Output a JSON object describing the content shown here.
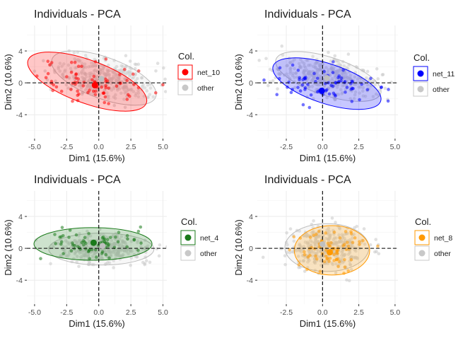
{
  "chart_data": [
    {
      "type": "scatter",
      "title": "Individuals - PCA",
      "xlabel": "Dim1 (15.6%)",
      "ylabel": "Dim2 (10.6%)",
      "xlim": [
        -5.6,
        5.3
      ],
      "ylim": [
        -7.0,
        7.2
      ],
      "xticks": [
        -5.0,
        -2.5,
        0.0,
        2.5,
        5.0
      ],
      "xtick_labels": [
        "-5.0",
        "-2.5",
        "0.0",
        "2.5",
        "5.0"
      ],
      "yticks": [
        -4,
        0,
        4
      ],
      "ytick_labels": [
        "-4",
        "0",
        "4"
      ],
      "legend": {
        "title": "Col.",
        "position": "right",
        "entries": [
          "net_10",
          "other"
        ]
      },
      "highlight": {
        "name": "net_10",
        "color": "#ff0000",
        "centroid": [
          -0.3,
          -0.3
        ],
        "ellipse": {
          "cx": -0.9,
          "cy": 0.15,
          "rx": 4.9,
          "ry": 2.7,
          "angle": -20
        }
      },
      "other": {
        "name": "other",
        "color": "#c8c8c8",
        "centroid": [
          0.2,
          0.5
        ],
        "ellipse": {
          "cx": 0.4,
          "cy": 0.6,
          "rx": 4.3,
          "ry": 2.6,
          "angle": -20
        }
      }
    },
    {
      "type": "scatter",
      "title": "Individuals - PCA",
      "xlabel": "Dim1 (15.6%)",
      "ylabel": "Dim2 (10.6%)",
      "xlim": [
        -4.5,
        5.2
      ],
      "ylim": [
        -7.0,
        7.2
      ],
      "xticks": [
        -2.5,
        0.0,
        2.5,
        5.0
      ],
      "xtick_labels": [
        "-2.5",
        "0.0",
        "2.5",
        "5.0"
      ],
      "yticks": [
        -4,
        0,
        4
      ],
      "ytick_labels": [
        "-4",
        "0",
        "4"
      ],
      "legend": {
        "title": "Col.",
        "position": "right",
        "entries": [
          "net_11",
          "other"
        ]
      },
      "highlight": {
        "name": "net_11",
        "color": "#0000ff",
        "centroid": [
          -0.05,
          -1.0
        ],
        "ellipse": {
          "cx": 0.3,
          "cy": -0.1,
          "rx": 3.9,
          "ry": 2.5,
          "angle": -18
        }
      },
      "other": {
        "name": "other",
        "color": "#c8c8c8",
        "centroid": [
          0.3,
          0.6
        ],
        "ellipse": {
          "cx": 0.4,
          "cy": 0.8,
          "rx": 3.8,
          "ry": 2.4,
          "angle": -18
        }
      }
    },
    {
      "type": "scatter",
      "title": "Individuals - PCA",
      "xlabel": "Dim1 (15.6%)",
      "ylabel": "Dim2 (10.6%)",
      "xlim": [
        -5.6,
        5.3
      ],
      "ylim": [
        -7.0,
        7.2
      ],
      "xticks": [
        -5.0,
        -2.5,
        0.0,
        2.5,
        5.0
      ],
      "xtick_labels": [
        "-5.0",
        "-2.5",
        "0.0",
        "2.5",
        "5.0"
      ],
      "yticks": [
        -4,
        0,
        4
      ],
      "ytick_labels": [
        "-4",
        "0",
        "4"
      ],
      "legend": {
        "title": "Col.",
        "position": "right",
        "entries": [
          "net_4",
          "other"
        ]
      },
      "highlight": {
        "name": "net_4",
        "color": "#1a7a1a",
        "centroid": [
          -0.4,
          0.7
        ],
        "ellipse": {
          "cx": -0.45,
          "cy": 0.55,
          "rx": 4.6,
          "ry": 2.05,
          "angle": 0
        }
      },
      "other": {
        "name": "other",
        "color": "#c8c8c8",
        "centroid": [
          0.3,
          0.3
        ],
        "ellipse": {
          "cx": 0.2,
          "cy": -0.1,
          "rx": 4.1,
          "ry": 2.0,
          "angle": 0
        }
      }
    },
    {
      "type": "scatter",
      "title": "Individuals - PCA",
      "xlabel": "Dim1 (15.6%)",
      "ylabel": "Dim2 (10.6%)",
      "xlim": [
        -4.5,
        5.2
      ],
      "ylim": [
        -7.0,
        7.2
      ],
      "xticks": [
        -2.5,
        0.0,
        2.5,
        5.0
      ],
      "xtick_labels": [
        "-2.5",
        "0.0",
        "2.5",
        "5.0"
      ],
      "yticks": [
        -4,
        0,
        4
      ],
      "ytick_labels": [
        "-4",
        "0",
        "4"
      ],
      "legend": {
        "title": "Col.",
        "position": "right",
        "entries": [
          "net_8",
          "other"
        ]
      },
      "highlight": {
        "name": "net_8",
        "color": "#ff9900",
        "centroid": [
          0.5,
          -0.5
        ],
        "ellipse": {
          "cx": 0.65,
          "cy": -0.25,
          "rx": 2.6,
          "ry": 3.1,
          "angle": 0
        }
      },
      "other": {
        "name": "other",
        "color": "#c8c8c8",
        "centroid": [
          0.0,
          0.5
        ],
        "ellipse": {
          "cx": 0.3,
          "cy": 0.1,
          "rx": 2.9,
          "ry": 3.0,
          "angle": 0
        }
      }
    }
  ],
  "colors": {
    "panel_bg": "#ffffff",
    "grid_major": "#ebebeb",
    "grid_minor": "#f5f5f5",
    "text": "#1a1a1a",
    "axis_text": "#4d4d4d"
  }
}
